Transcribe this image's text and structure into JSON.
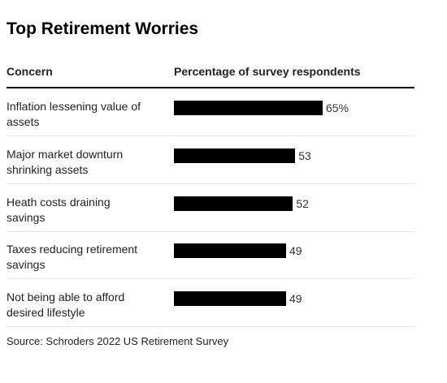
{
  "title": "Top Retirement Worries",
  "columns": {
    "concern": "Concern",
    "percentage": "Percentage of survey respondents"
  },
  "source": "Source: Schroders 2022 US Retirement Survey",
  "colors": {
    "bar": "#000000",
    "rule": "#000000"
  },
  "chart_data": {
    "type": "bar",
    "orientation": "horizontal",
    "title": "Top Retirement Worries",
    "categories": [
      "Inflation lessening value of assets",
      "Major market downturn shrinking assets",
      "Heath costs draining savings",
      "Taxes reducing retirement savings",
      "Not being able to afford desired lifestyle"
    ],
    "category_labels": [
      [
        "Inflation lessening value of",
        "assets"
      ],
      [
        "Major market downturn",
        "shrinking assets"
      ],
      [
        "Heath costs draining",
        "savings"
      ],
      [
        "Taxes reducing retirement",
        "savings"
      ],
      [
        "Not being able to afford",
        "desired lifestyle"
      ]
    ],
    "values": [
      65,
      53,
      52,
      49,
      49
    ],
    "value_labels": [
      "65%",
      "53",
      "52",
      "49",
      "49"
    ],
    "unit": "%",
    "xlim": [
      0,
      100
    ],
    "grid": false,
    "legend": "none"
  }
}
